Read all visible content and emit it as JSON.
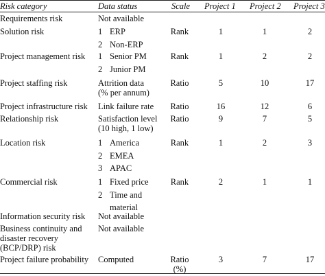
{
  "headers": {
    "risk_category": "Risk category",
    "data_status": "Data status",
    "scale": "Scale",
    "project1": "Project 1",
    "project2": "Project 2",
    "project3": "Project 3"
  },
  "rows": [
    {
      "risk": "Requirements risk",
      "status": [
        {
          "text": "Not available"
        }
      ],
      "scale": "",
      "p1": "",
      "p2": "",
      "p3": ""
    },
    {
      "risk": "Solution risk",
      "status": [
        {
          "num": "1",
          "text": "ERP"
        },
        {
          "num": "2",
          "text": "Non-ERP"
        }
      ],
      "scale": "Rank",
      "p1": "1",
      "p2": "1",
      "p3": "2"
    },
    {
      "risk": "Project management risk",
      "status": [
        {
          "num": "1",
          "text": "Senior PM"
        },
        {
          "num": "2",
          "text": "Junior PM"
        }
      ],
      "scale": "Rank",
      "p1": "1",
      "p2": "2",
      "p3": "2"
    },
    {
      "risk": "Project staffing risk",
      "status": [
        {
          "text": "Attrition data"
        },
        {
          "text": "(% per annum)"
        }
      ],
      "scale": "Ratio",
      "p1": "5",
      "p2": "10",
      "p3": "17"
    },
    {
      "risk": "Project infrastructure risk",
      "status": [
        {
          "text": "Link failure rate"
        }
      ],
      "scale": "Ratio",
      "p1": "16",
      "p2": "12",
      "p3": "6"
    },
    {
      "risk": "Relationship risk",
      "status": [
        {
          "text": "Satisfaction level"
        },
        {
          "text": "(10 high, 1 low)"
        }
      ],
      "scale": "Ratio",
      "p1": "9",
      "p2": "7",
      "p3": "5"
    },
    {
      "risk": "Location risk",
      "status": [
        {
          "num": "1",
          "text": "America"
        },
        {
          "num": "2",
          "text": "EMEA"
        },
        {
          "num": "3",
          "text": "APAC"
        }
      ],
      "scale": "Rank",
      "p1": "1",
      "p2": "2",
      "p3": "3"
    },
    {
      "risk": "Commercial risk",
      "status": [
        {
          "num": "1",
          "text": "Fixed price"
        },
        {
          "num": "2",
          "text": "Time and"
        },
        {
          "text": "material"
        }
      ],
      "scale": "Rank",
      "p1": "2",
      "p2": "1",
      "p3": "1"
    },
    {
      "risk": "Information security risk",
      "status": [
        {
          "text": "Not available"
        }
      ],
      "scale": "",
      "p1": "",
      "p2": "",
      "p3": ""
    },
    {
      "risk": "Business continuity and disaster recovery (BCP/DRP) risk",
      "risk_lines": [
        "Business continuity and",
        "disaster recovery",
        "(BCP/DRP) risk"
      ],
      "status": [
        {
          "text": "Not available"
        }
      ],
      "scale": "",
      "p1": "",
      "p2": "",
      "p3": ""
    },
    {
      "risk": "Project failure probability",
      "status": [
        {
          "text": "Computed"
        }
      ],
      "scale": "Ratio",
      "scale_sub": "(%)",
      "p1": "3",
      "p2": "7",
      "p3": "17"
    }
  ]
}
